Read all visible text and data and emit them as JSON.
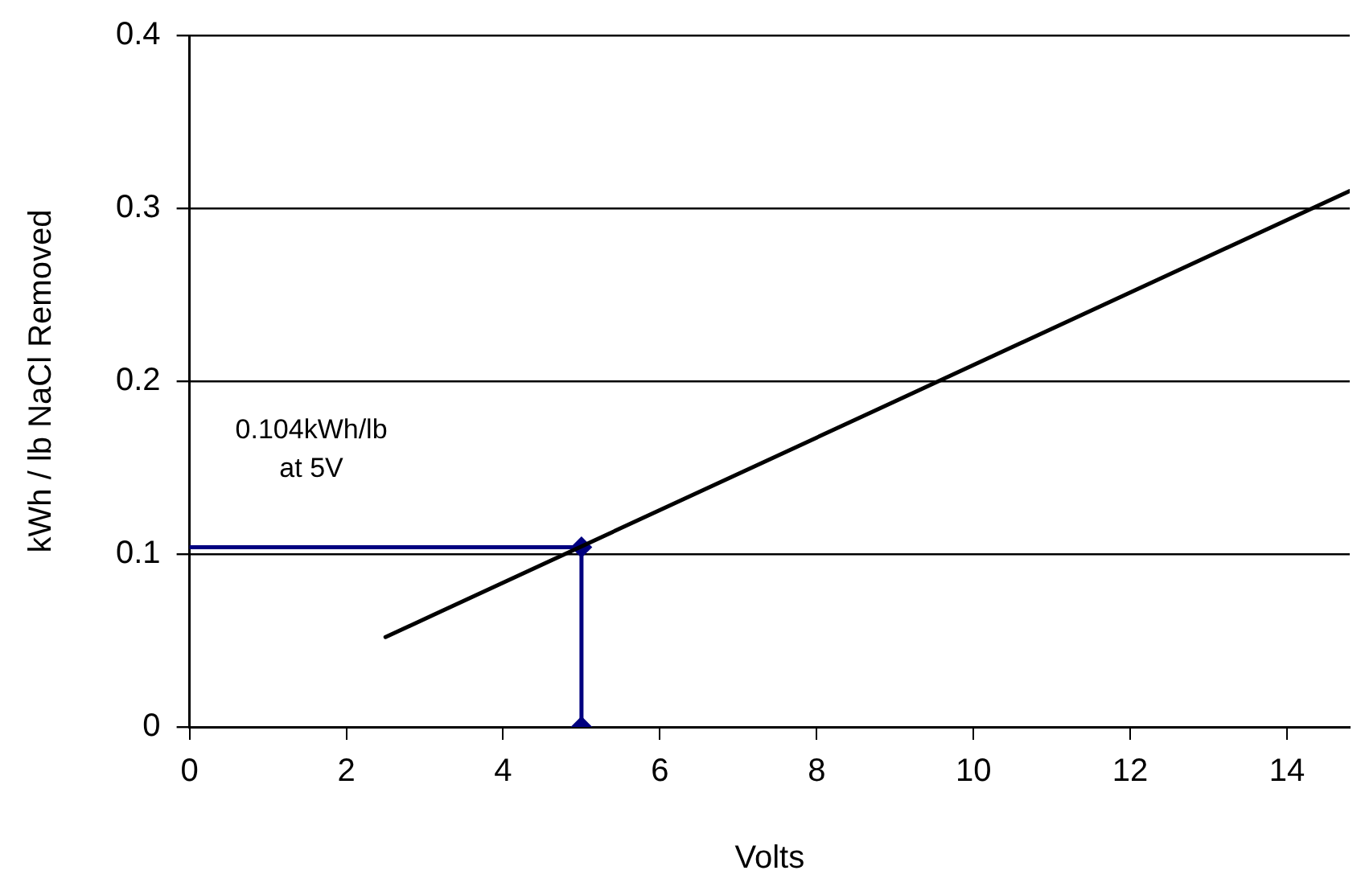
{
  "chart_data": {
    "type": "line",
    "xlabel": "Volts",
    "ylabel": "kWh / lb NaCl Removed",
    "xlim": [
      0,
      14.8
    ],
    "xticks": [
      0,
      2,
      4,
      6,
      8,
      10,
      12,
      14
    ],
    "ylim": [
      0,
      0.4
    ],
    "yticks": [
      0,
      0.1,
      0.2,
      0.3,
      0.4
    ],
    "grid": "y",
    "legend": false,
    "annotations": [
      "0.104kWh/lb\nat 5V"
    ],
    "series": [
      {
        "color": "#000000",
        "x": [
          2.5,
          14.8
        ],
        "values": [
          0.052,
          0.31
        ],
        "marker": "none"
      },
      {
        "color": "#000080",
        "x": [
          0,
          5,
          5
        ],
        "values": [
          0.104,
          0.104,
          0
        ],
        "marker": "none"
      },
      {
        "type": "scatter",
        "color": "#000080",
        "x": [
          5,
          5
        ],
        "values": [
          0.104,
          0
        ],
        "marker": "diamond"
      }
    ]
  }
}
